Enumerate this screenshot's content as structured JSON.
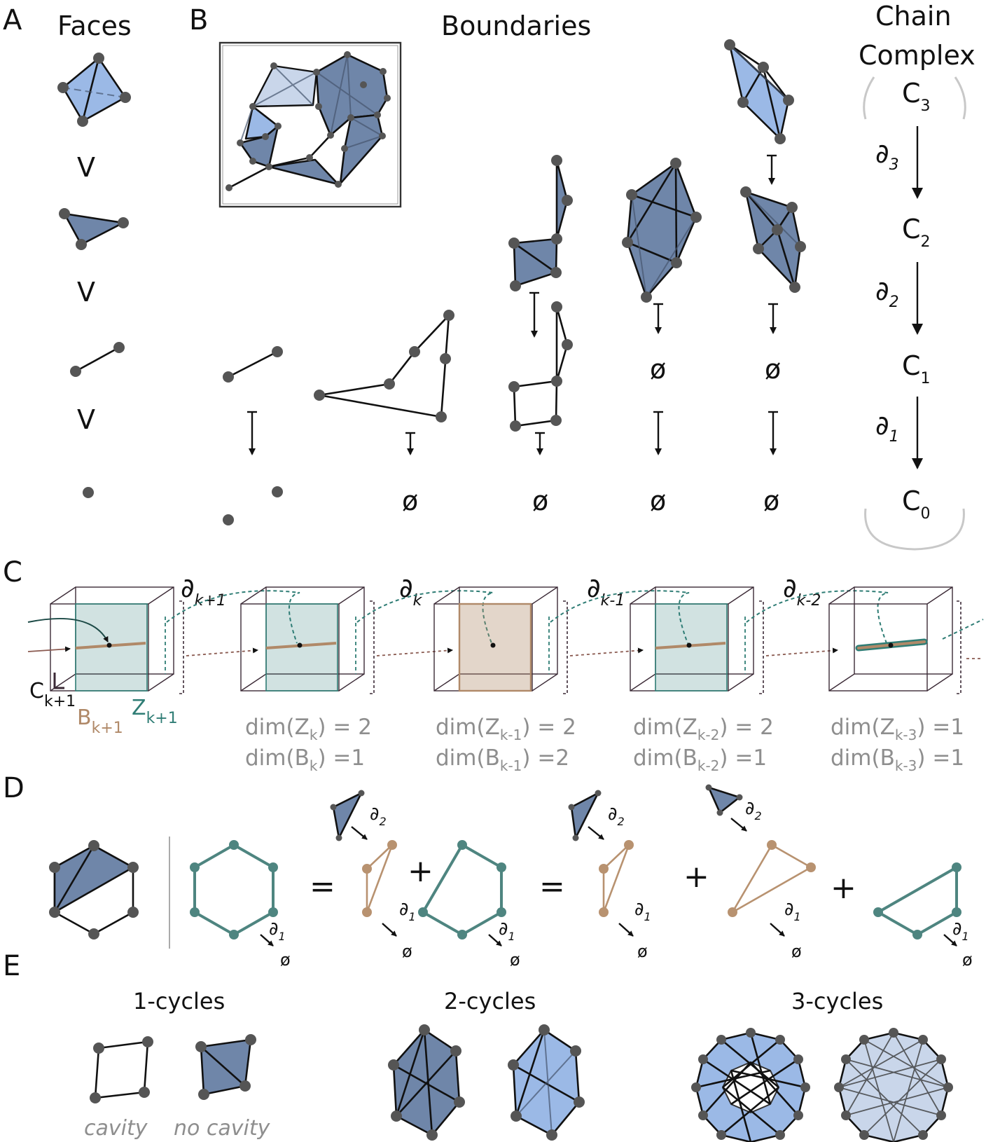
{
  "panel_letters": {
    "a": "A",
    "b": "B",
    "c": "C",
    "d": "D",
    "e": "E"
  },
  "panel_a": {
    "title": "Faces",
    "order_symbol": "V"
  },
  "panel_b": {
    "title": "Boundaries",
    "empty_symbol": "ø"
  },
  "chain_complex": {
    "title_line1": "Chain",
    "title_line2": "Complex",
    "spaces": [
      "C",
      "C",
      "C",
      "C"
    ],
    "space_indices": [
      "3",
      "2",
      "1",
      "0"
    ],
    "maps": [
      "∂",
      "∂",
      "∂"
    ],
    "map_indices": [
      "3",
      "2",
      "1"
    ]
  },
  "panel_c": {
    "boundary_maps": [
      {
        "symbol": "∂",
        "index": "k+1"
      },
      {
        "symbol": "∂",
        "index": "k"
      },
      {
        "symbol": "∂",
        "index": "k-1"
      },
      {
        "symbol": "∂",
        "index": "k-2"
      }
    ],
    "space_label": {
      "base": "C",
      "index": "k+1"
    },
    "b_label": {
      "base": "B",
      "index": "k+1"
    },
    "z_label": {
      "base": "Z",
      "index": "k+1"
    },
    "dims": [
      {
        "z_pre": "dim(Z",
        "z_sub": "k",
        "z_post": ") = 2",
        "b_pre": "dim(B",
        "b_sub": "k",
        "b_post": ") =1"
      },
      {
        "z_pre": "dim(Z",
        "z_sub": "k-1",
        "z_post": ") = 2",
        "b_pre": "dim(B",
        "b_sub": "k-1",
        "b_post": ") =2"
      },
      {
        "z_pre": "dim(Z",
        "z_sub": "k-2",
        "z_post": ") = 2",
        "b_pre": "dim(B",
        "b_sub": "k-2",
        "b_post": ") =1"
      },
      {
        "z_pre": "dim(Z",
        "z_sub": "k-3",
        "z_post": ") =1",
        "b_pre": "dim(B",
        "b_sub": "k-3",
        "b_post": ") =1"
      }
    ],
    "colors": {
      "b_tan": "#b08968",
      "z_teal": "#2f7d75",
      "c_purple": "#3b2a36"
    }
  },
  "panel_d": {
    "equals": "=",
    "plus": "+",
    "partial": "∂",
    "idx1": "1",
    "idx2": "2",
    "empty_symbol": "ø"
  },
  "panel_e": {
    "one_cycles": "1-cycles",
    "two_cycles": "2-cycles",
    "three_cycles": "3-cycles",
    "cavity": "cavity",
    "no_cavity": "no cavity"
  },
  "colors": {
    "face_dark": "#6f86a9",
    "face_light": "#9bb9e6",
    "face_pale": "#c9d6ea",
    "node": "#555555"
  }
}
